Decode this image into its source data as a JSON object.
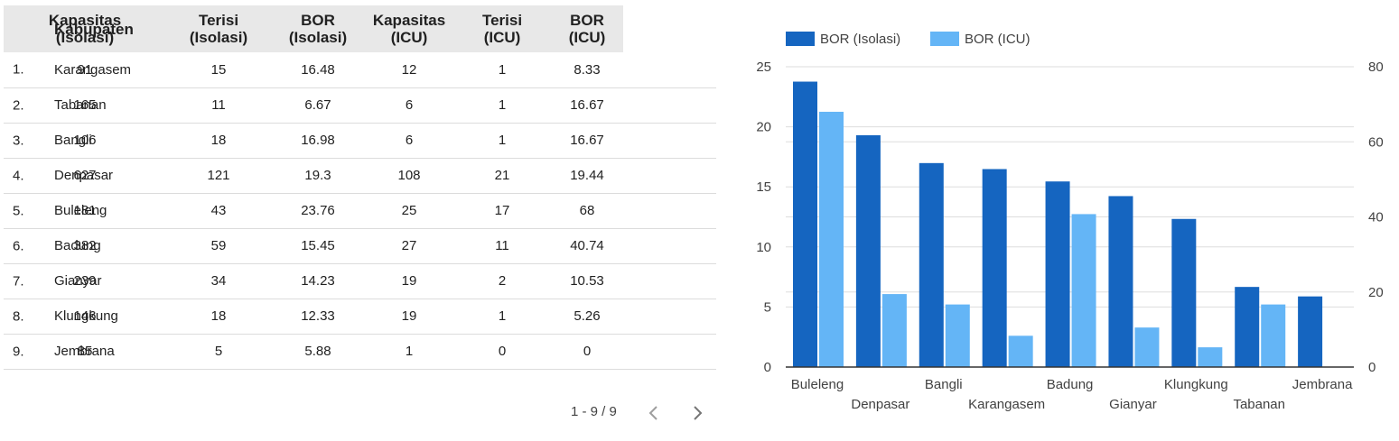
{
  "table": {
    "headers": {
      "kabupaten": "Kabupaten",
      "kap_iso_1": "Kapasitas",
      "kap_iso_2": "(Isolasi)",
      "ter_iso_1": "Terisi",
      "ter_iso_2": "(Isolasi)",
      "bor_iso_1": "BOR",
      "bor_iso_2": "(Isolasi)",
      "kap_icu_1": "Kapasitas",
      "kap_icu_2": "(ICU)",
      "ter_icu_1": "Terisi",
      "ter_icu_2": "(ICU)",
      "bor_icu_1": "BOR",
      "bor_icu_2": "(ICU)"
    },
    "rows": [
      {
        "idx": "1.",
        "name": "Karangasem",
        "kap_iso": "91",
        "ter_iso": "15",
        "bor_iso": "16.48",
        "kap_icu": "12",
        "ter_icu": "1",
        "bor_icu": "8.33"
      },
      {
        "idx": "2.",
        "name": "Tabanan",
        "kap_iso": "165",
        "ter_iso": "11",
        "bor_iso": "6.67",
        "kap_icu": "6",
        "ter_icu": "1",
        "bor_icu": "16.67"
      },
      {
        "idx": "3.",
        "name": "Bangli",
        "kap_iso": "106",
        "ter_iso": "18",
        "bor_iso": "16.98",
        "kap_icu": "6",
        "ter_icu": "1",
        "bor_icu": "16.67"
      },
      {
        "idx": "4.",
        "name": "Denpasar",
        "kap_iso": "627",
        "ter_iso": "121",
        "bor_iso": "19.3",
        "kap_icu": "108",
        "ter_icu": "21",
        "bor_icu": "19.44"
      },
      {
        "idx": "5.",
        "name": "Buleleng",
        "kap_iso": "181",
        "ter_iso": "43",
        "bor_iso": "23.76",
        "kap_icu": "25",
        "ter_icu": "17",
        "bor_icu": "68"
      },
      {
        "idx": "6.",
        "name": "Badung",
        "kap_iso": "382",
        "ter_iso": "59",
        "bor_iso": "15.45",
        "kap_icu": "27",
        "ter_icu": "11",
        "bor_icu": "40.74"
      },
      {
        "idx": "7.",
        "name": "Gianyar",
        "kap_iso": "239",
        "ter_iso": "34",
        "bor_iso": "14.23",
        "kap_icu": "19",
        "ter_icu": "2",
        "bor_icu": "10.53"
      },
      {
        "idx": "8.",
        "name": "Klungkung",
        "kap_iso": "146",
        "ter_iso": "18",
        "bor_iso": "12.33",
        "kap_icu": "19",
        "ter_icu": "1",
        "bor_icu": "5.26"
      },
      {
        "idx": "9.",
        "name": "Jembrana",
        "kap_iso": "85",
        "ter_iso": "5",
        "bor_iso": "5.88",
        "kap_icu": "1",
        "ter_icu": "0",
        "bor_icu": "0"
      }
    ]
  },
  "pager": {
    "text": "1 - 9 / 9",
    "prev_icon": "chevron-left-icon",
    "next_icon": "chevron-right-icon"
  },
  "colors": {
    "isolasi": "#1565c0",
    "icu": "#64b5f6",
    "header_bg": "#e8e8e8"
  },
  "chart_data": {
    "type": "bar",
    "categories": [
      "Buleleng",
      "Denpasar",
      "Bangli",
      "Karangasem",
      "Badung",
      "Gianyar",
      "Klungkung",
      "Tabanan",
      "Jembrana"
    ],
    "series": [
      {
        "name": "BOR (Isolasi)",
        "axis": "left",
        "values": [
          23.76,
          19.3,
          16.98,
          16.48,
          15.45,
          14.23,
          12.33,
          6.67,
          5.88
        ]
      },
      {
        "name": "BOR (ICU)",
        "axis": "right",
        "values": [
          68,
          19.44,
          16.67,
          8.33,
          40.74,
          10.53,
          5.26,
          16.67,
          0
        ]
      }
    ],
    "y_left": {
      "range": [
        0,
        25
      ],
      "ticks": [
        "0",
        "5",
        "10",
        "15",
        "20",
        "25"
      ]
    },
    "y_right": {
      "range": [
        0,
        80
      ],
      "ticks": [
        "0",
        "20",
        "40",
        "60",
        "80"
      ]
    },
    "legend": "top-left",
    "grid": true
  }
}
